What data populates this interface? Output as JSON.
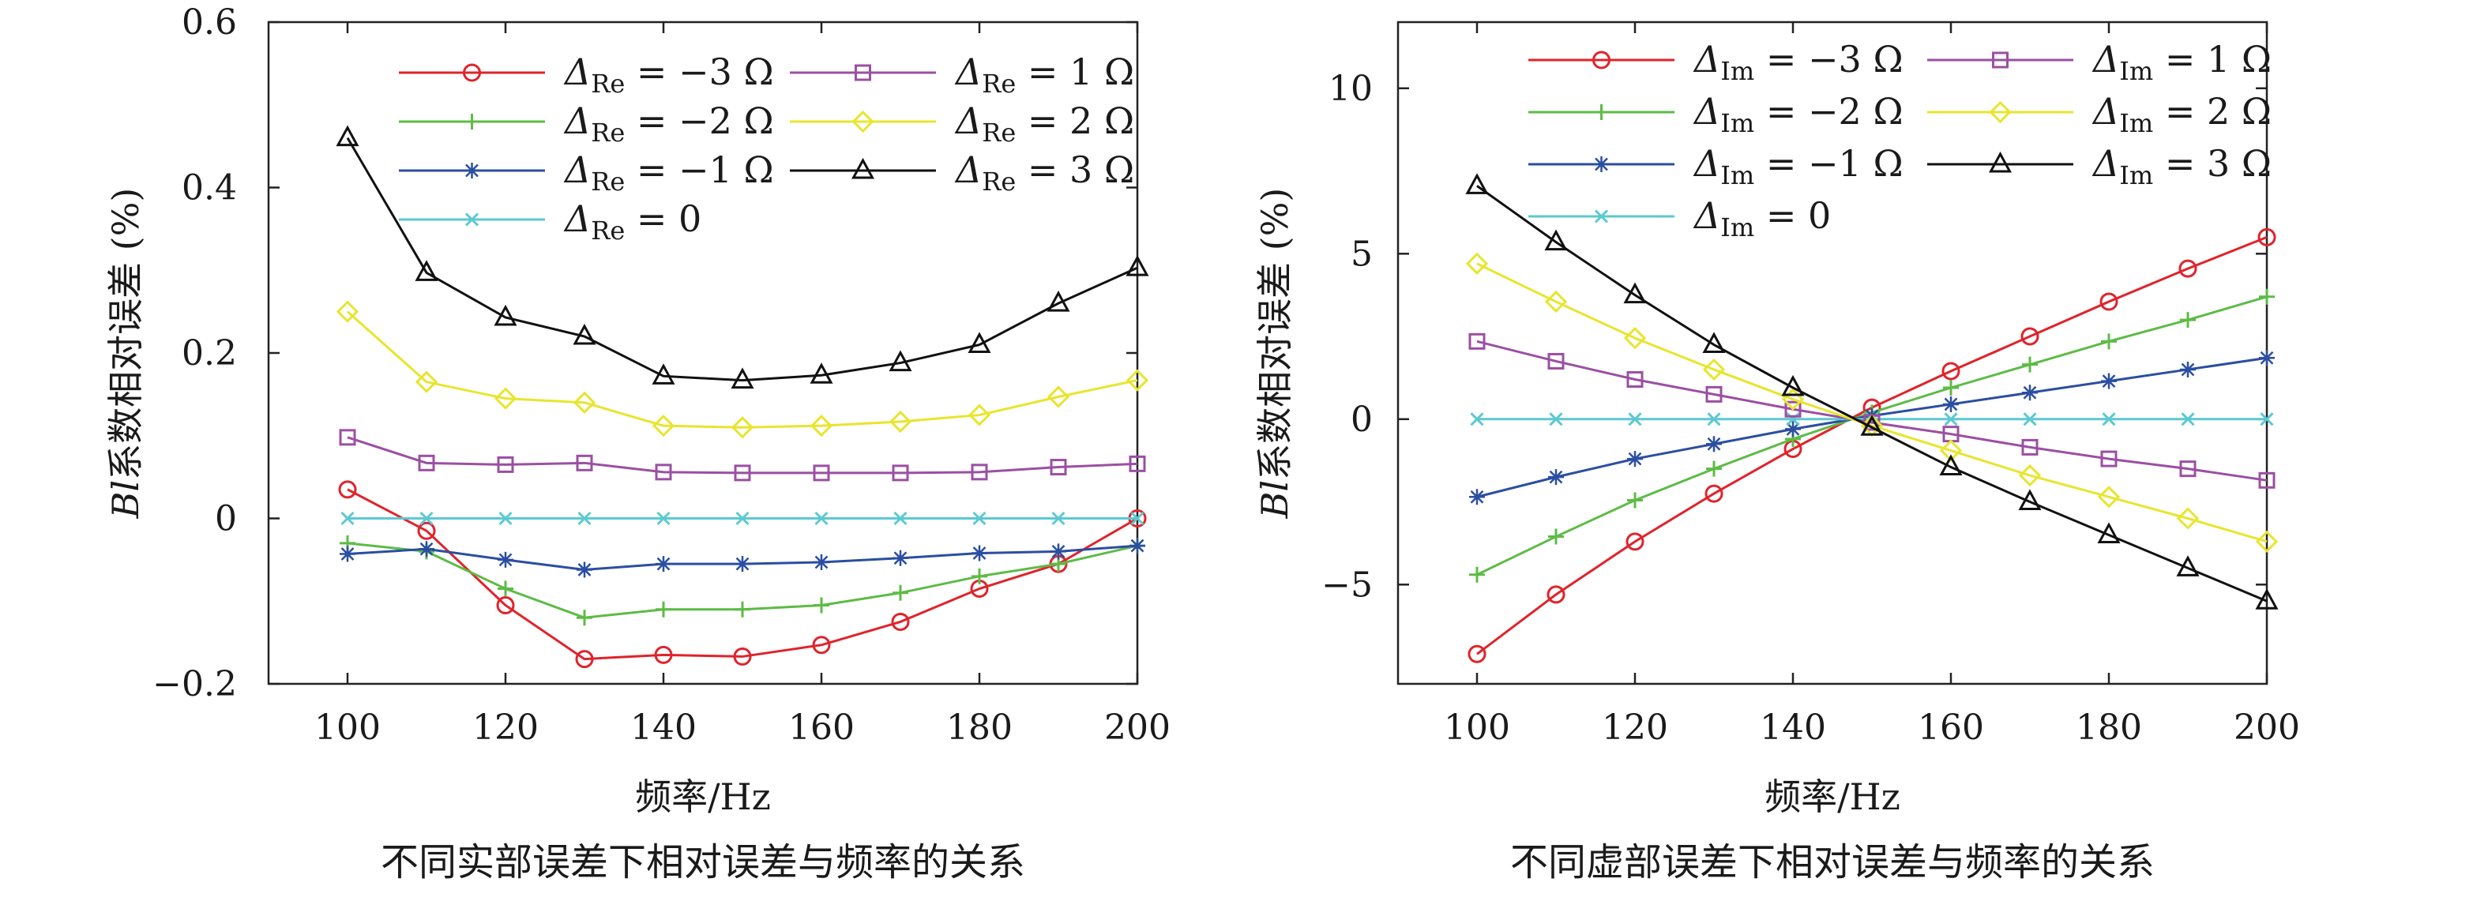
{
  "chart_data": [
    {
      "type": "line",
      "id": "re",
      "caption": "不同实部误差下相对误差与频率的关系",
      "xlabel": "频率/Hz",
      "ylabel_italic": "Bl",
      "ylabel_rest": "系数相对误差 (%)",
      "xlim": [
        90,
        200
      ],
      "ylim": [
        -0.2,
        0.6
      ],
      "xticks": [
        100,
        120,
        140,
        160,
        180,
        200
      ],
      "yticks": [
        -0.2,
        0,
        0.2,
        0.4,
        0.6
      ],
      "ytick_labels": [
        "−0.2",
        "0",
        "0.2",
        "0.4",
        "0.6"
      ],
      "grid": false,
      "legend_position": "top",
      "x": [
        100,
        110,
        120,
        130,
        140,
        150,
        160,
        170,
        180,
        190,
        200
      ],
      "series": [
        {
          "name": "Δ_Re = −3 Ω",
          "sub": "Re",
          "value_text": " = −3 Ω",
          "color": "#e0232b",
          "marker": "circle",
          "values": [
            0.035,
            -0.015,
            -0.105,
            -0.17,
            -0.165,
            -0.167,
            -0.153,
            -0.125,
            -0.085,
            -0.055,
            0.0
          ]
        },
        {
          "name": "Δ_Re = −2 Ω",
          "sub": "Re",
          "value_text": " = −2 Ω",
          "color": "#5dbb46",
          "marker": "plus",
          "values": [
            -0.03,
            -0.04,
            -0.085,
            -0.12,
            -0.11,
            -0.11,
            -0.105,
            -0.09,
            -0.07,
            -0.055,
            -0.033
          ]
        },
        {
          "name": "Δ_Re = −1 Ω",
          "sub": "Re",
          "value_text": " = −1 Ω",
          "color": "#2b4ea1",
          "marker": "star",
          "values": [
            -0.043,
            -0.037,
            -0.05,
            -0.062,
            -0.055,
            -0.055,
            -0.053,
            -0.048,
            -0.042,
            -0.04,
            -0.033
          ]
        },
        {
          "name": "Δ_Re = 0",
          "sub": "Re",
          "value_text": " = 0",
          "color": "#5cc9d1",
          "marker": "x",
          "values": [
            0,
            0,
            0,
            0,
            0,
            0,
            0,
            0,
            0,
            0,
            0
          ]
        },
        {
          "name": "Δ_Re = 1 Ω",
          "sub": "Re",
          "value_text": " = 1 Ω",
          "color": "#9b4fa3",
          "marker": "square",
          "values": [
            0.098,
            0.067,
            0.065,
            0.067,
            0.056,
            0.055,
            0.055,
            0.055,
            0.056,
            0.062,
            0.066
          ]
        },
        {
          "name": "Δ_Re = 2 Ω",
          "sub": "Re",
          "value_text": " = 2 Ω",
          "color": "#e8e52e",
          "marker": "diamond",
          "values": [
            0.25,
            0.165,
            0.145,
            0.14,
            0.112,
            0.11,
            0.112,
            0.117,
            0.125,
            0.147,
            0.167
          ]
        },
        {
          "name": "Δ_Re = 3 Ω",
          "sub": "Re",
          "value_text": " = 3 Ω",
          "color": "#111111",
          "marker": "triangle",
          "values": [
            0.46,
            0.297,
            0.243,
            0.22,
            0.172,
            0.167,
            0.173,
            0.188,
            0.21,
            0.26,
            0.303
          ]
        }
      ]
    },
    {
      "type": "line",
      "id": "im",
      "caption": "不同虚部误差下相对误差与频率的关系",
      "xlabel": "频率/Hz",
      "ylabel_italic": "Bl",
      "ylabel_rest": "系数相对误差 (%)",
      "xlim": [
        90,
        200
      ],
      "ylim": [
        -8,
        12
      ],
      "xticks": [
        100,
        120,
        140,
        160,
        180,
        200
      ],
      "yticks": [
        -5,
        0,
        5,
        10
      ],
      "ytick_labels": [
        "−5",
        "0",
        "5",
        "10"
      ],
      "grid": false,
      "legend_position": "top",
      "x": [
        100,
        110,
        120,
        130,
        140,
        150,
        160,
        170,
        180,
        190,
        200
      ],
      "series": [
        {
          "name": "Δ_Im = −3 Ω",
          "sub": "Im",
          "value_text": " = −3 Ω",
          "color": "#e0232b",
          "marker": "circle",
          "values": [
            -7.1,
            -5.3,
            -3.7,
            -2.25,
            -0.9,
            0.35,
            1.45,
            2.5,
            3.55,
            4.55,
            5.5
          ]
        },
        {
          "name": "Δ_Im = −2 Ω",
          "sub": "Im",
          "value_text": " = −2 Ω",
          "color": "#5dbb46",
          "marker": "plus",
          "values": [
            -4.7,
            -3.55,
            -2.45,
            -1.5,
            -0.6,
            0.2,
            0.95,
            1.65,
            2.35,
            3.0,
            3.7
          ]
        },
        {
          "name": "Δ_Im = −1 Ω",
          "sub": "Im",
          "value_text": " = −1 Ω",
          "color": "#2b4ea1",
          "marker": "star",
          "values": [
            -2.35,
            -1.75,
            -1.2,
            -0.75,
            -0.3,
            0.1,
            0.45,
            0.8,
            1.15,
            1.5,
            1.85
          ]
        },
        {
          "name": "Δ_Im = 0",
          "sub": "Im",
          "value_text": " = 0",
          "color": "#5cc9d1",
          "marker": "x",
          "values": [
            0,
            0,
            0,
            0,
            0,
            0,
            0,
            0,
            0,
            0,
            0
          ]
        },
        {
          "name": "Δ_Im = 1 Ω",
          "sub": "Im",
          "value_text": " = 1 Ω",
          "color": "#9b4fa3",
          "marker": "square",
          "values": [
            2.35,
            1.75,
            1.2,
            0.75,
            0.3,
            -0.1,
            -0.45,
            -0.85,
            -1.2,
            -1.5,
            -1.85
          ]
        },
        {
          "name": "Δ_Im = 2 Ω",
          "sub": "Im",
          "value_text": " = 2 Ω",
          "color": "#e8e52e",
          "marker": "diamond",
          "values": [
            4.7,
            3.55,
            2.45,
            1.5,
            0.6,
            -0.2,
            -0.95,
            -1.7,
            -2.35,
            -3.0,
            -3.7
          ]
        },
        {
          "name": "Δ_Im = 3 Ω",
          "sub": "Im",
          "value_text": " = 3 Ω",
          "color": "#111111",
          "marker": "triangle",
          "values": [
            7.05,
            5.35,
            3.75,
            2.25,
            0.95,
            -0.25,
            -1.45,
            -2.5,
            -3.5,
            -4.5,
            -5.5
          ]
        }
      ]
    }
  ]
}
